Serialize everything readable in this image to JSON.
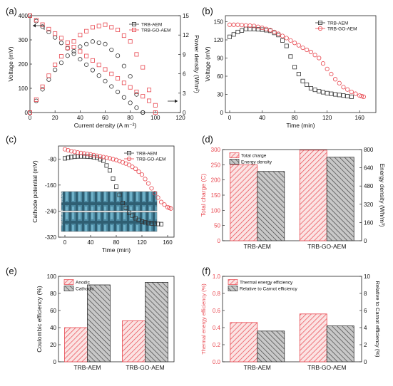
{
  "colors": {
    "trb": "#333333",
    "go": "#e8474f",
    "red_fill": "#f08a8a",
    "gray_fill": "#9a9a9a",
    "photo": "#3c6f82"
  },
  "chart_data": [
    {
      "id": "a",
      "panel_label": "(a)",
      "type": "line",
      "xlabel": "Current density (A m⁻²)",
      "ylabel": "Voltage (mV)",
      "y2label": "Power density (W/m²)",
      "xlim": [
        0,
        120
      ],
      "ylim": [
        0,
        400
      ],
      "y2lim": [
        0,
        15
      ],
      "xticks": [
        "0",
        "20",
        "40",
        "60",
        "80",
        "100",
        "120"
      ],
      "yticks": [
        "0",
        "100",
        "200",
        "300",
        "400"
      ],
      "y2ticks": [
        "0",
        "3",
        "6",
        "9",
        "12",
        "15"
      ],
      "legend": [
        "TRB-AEM",
        "TRB-GO-AEM"
      ],
      "series": [
        {
          "name": "TRB-AEM",
          "axis": "left",
          "x": [
            0,
            10,
            20,
            30,
            40,
            50,
            60,
            70,
            80,
            90
          ],
          "y": [
            400,
            355,
            310,
            265,
            220,
            175,
            130,
            85,
            40,
            0
          ]
        },
        {
          "name": "TRB-GO-AEM",
          "axis": "left",
          "x": [
            0,
            10,
            20,
            30,
            40,
            50,
            60,
            70,
            80,
            90,
            100
          ],
          "y": [
            400,
            363,
            326,
            289,
            252,
            215,
            178,
            141,
            104,
            67,
            30
          ]
        },
        {
          "name": "TRB-AEM",
          "axis": "right",
          "x": [
            0,
            10,
            20,
            30,
            40,
            50,
            60,
            70,
            80,
            90
          ],
          "y": [
            0,
            3.6,
            6.6,
            8.8,
            10.2,
            11.0,
            10.6,
            8.8,
            5.6,
            0
          ]
        },
        {
          "name": "TRB-GO-AEM",
          "axis": "right",
          "x": [
            0,
            10,
            20,
            30,
            40,
            50,
            60,
            70,
            80,
            90,
            100
          ],
          "y": [
            0,
            4.0,
            7.4,
            10.0,
            12.0,
            13.2,
            13.6,
            12.8,
            11.0,
            7.0,
            0
          ]
        }
      ]
    },
    {
      "id": "b",
      "panel_label": "(b)",
      "type": "line",
      "xlabel": "Time (min)",
      "ylabel": "Voltage (mV)",
      "xlim": [
        0,
        180
      ],
      "ylim": [
        0,
        160
      ],
      "xticks": [
        "0",
        "40",
        "80",
        "120",
        "160"
      ],
      "yticks": [
        "0",
        "30",
        "60",
        "90",
        "120",
        "150"
      ],
      "legend": [
        "TRB-AEM",
        "TRB-GO-AEM"
      ],
      "series": [
        {
          "name": "TRB-AEM",
          "x": [
            0,
            10,
            20,
            30,
            40,
            50,
            60,
            70,
            80,
            90,
            100,
            110,
            120,
            130,
            140,
            150
          ],
          "y": [
            125,
            133,
            138,
            138,
            137,
            135,
            128,
            110,
            75,
            52,
            40,
            35,
            32,
            30,
            28,
            26
          ]
        },
        {
          "name": "TRB-GO-AEM",
          "x": [
            0,
            10,
            20,
            30,
            40,
            50,
            60,
            70,
            80,
            90,
            100,
            110,
            120,
            130,
            140,
            150,
            160,
            165
          ],
          "y": [
            145,
            145,
            144,
            143,
            140,
            136,
            130,
            123,
            115,
            107,
            100,
            90,
            72,
            55,
            42,
            34,
            28,
            26
          ]
        }
      ]
    },
    {
      "id": "c",
      "panel_label": "(c)",
      "type": "line",
      "xlabel": "Time (min)",
      "ylabel": "Cathode potential (mV)",
      "xlim": [
        -10,
        170
      ],
      "ylim": [
        -320,
        -40
      ],
      "xticks": [
        "0",
        "40",
        "80",
        "120",
        "160"
      ],
      "yticks": [
        "-80",
        "-160",
        "-240",
        "-320"
      ],
      "legend": [
        "TRB-AEM",
        "TRB-GO-AEM"
      ],
      "photo_labels": [
        "TRB-AEM",
        "TRB-GO-AEM"
      ],
      "series": [
        {
          "name": "TRB-AEM",
          "x": [
            0,
            10,
            20,
            30,
            40,
            50,
            60,
            70,
            80,
            90,
            100,
            110,
            120,
            130,
            140,
            150
          ],
          "y": [
            -78,
            -74,
            -72,
            -72,
            -73,
            -76,
            -85,
            -115,
            -165,
            -215,
            -245,
            -262,
            -272,
            -277,
            -279,
            -280
          ]
        },
        {
          "name": "TRB-GO-AEM",
          "x": [
            0,
            10,
            20,
            30,
            40,
            50,
            60,
            70,
            80,
            90,
            100,
            110,
            120,
            130,
            140,
            150,
            160,
            165
          ],
          "y": [
            -50,
            -56,
            -60,
            -63,
            -66,
            -70,
            -74,
            -78,
            -83,
            -90,
            -98,
            -110,
            -128,
            -155,
            -185,
            -212,
            -228,
            -232
          ]
        }
      ]
    },
    {
      "id": "d",
      "panel_label": "(d)",
      "type": "bar",
      "categories": [
        "TRB-AEM",
        "TRB-GO-AEM"
      ],
      "ylabel": "Total charge (C)",
      "y2label": "Energy density (Wh/m³)",
      "ylim": [
        0,
        300
      ],
      "y2lim": [
        0,
        800
      ],
      "yticks": [
        "0",
        "50",
        "100",
        "150",
        "200",
        "250",
        "300"
      ],
      "y2ticks": [
        "0",
        "160",
        "320",
        "480",
        "640",
        "800"
      ],
      "legend": [
        "Total charge",
        "Energy density"
      ],
      "series": [
        {
          "name": "Total charge",
          "axis": "left",
          "values": [
            250,
            298
          ]
        },
        {
          "name": "Energy density",
          "axis": "right",
          "values": [
            608,
            733
          ]
        }
      ]
    },
    {
      "id": "e",
      "panel_label": "(e)",
      "type": "bar",
      "categories": [
        "TRB-AEM",
        "TRB-GO-AEM"
      ],
      "ylabel": "Coulombic efficiency (%)",
      "ylim": [
        0,
        100
      ],
      "yticks": [
        "0",
        "20",
        "40",
        "60",
        "80",
        "100"
      ],
      "legend": [
        "Anodic",
        "Cathodic"
      ],
      "series": [
        {
          "name": "Anodic",
          "values": [
            40,
            48
          ]
        },
        {
          "name": "Cathodic",
          "values": [
            90,
            93
          ]
        }
      ]
    },
    {
      "id": "f",
      "panel_label": "(f)",
      "type": "bar",
      "categories": [
        "TRB-AEM",
        "TRB-GO-AEM"
      ],
      "ylabel": "Thermal energy efficiency (%)",
      "y2label": "Relative to Carnot efficiency (%)",
      "ylim": [
        0,
        1.0
      ],
      "y2lim": [
        0,
        10
      ],
      "yticks": [
        "0.0",
        "0.2",
        "0.4",
        "0.6",
        "0.8",
        "1.0"
      ],
      "y2ticks": [
        "0",
        "2",
        "4",
        "6",
        "8",
        "10"
      ],
      "legend": [
        "Thermal energy efficiency",
        "Relative to Carnot efficiency"
      ],
      "series": [
        {
          "name": "Thermal energy efficiency",
          "axis": "left",
          "values": [
            0.46,
            0.56
          ]
        },
        {
          "name": "Relative to Carnot efficiency",
          "axis": "right",
          "values": [
            3.6,
            4.2
          ]
        }
      ]
    }
  ]
}
